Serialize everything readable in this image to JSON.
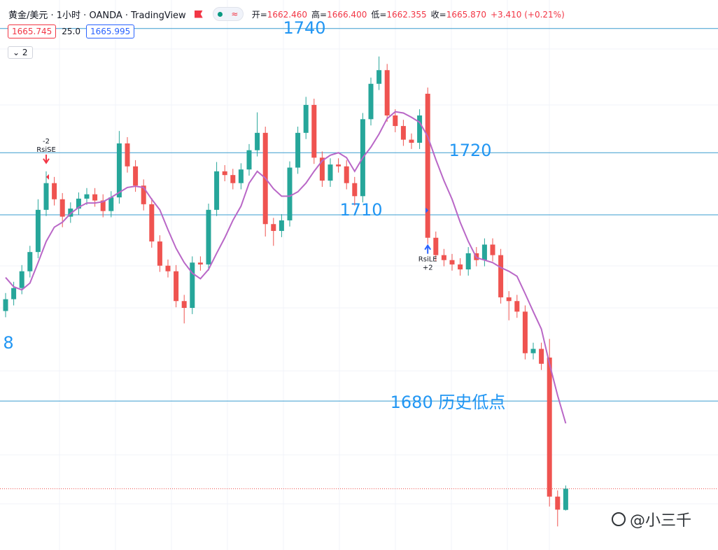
{
  "chart_data": {
    "type": "candlestick",
    "title": "黄金/美元 · 1小时 · OANDA · TradingView",
    "ohlc_header": [
      {
        "label": "开=",
        "value": "1662.460"
      },
      {
        "label": "高=",
        "value": "1666.400"
      },
      {
        "label": "低=",
        "value": "1662.355"
      },
      {
        "label": "收=",
        "value": "1665.870"
      }
    ],
    "change": "+3.410 (+0.21%)",
    "bid": "1665.745",
    "spread": "25.0",
    "ask": "1665.995",
    "indicator_count": "2",
    "watermark": "@小三千",
    "ylim": [
      1656,
      1744.6
    ],
    "up_color": "#26a69a",
    "down_color": "#ef5350",
    "open": [
      1694.5,
      1696.4,
      1698.2,
      1700.9,
      1704.0,
      1710.8,
      1715.1,
      1712.5,
      1709.7,
      1711.0,
      1712.6,
      1713.3,
      1712.3,
      1710.6,
      1712.8,
      1721.5,
      1717.8,
      1714.7,
      1711.7,
      1705.7,
      1701.8,
      1700.9,
      1696.1,
      1695.0,
      1702.3,
      1702.0,
      1710.8,
      1717.0,
      1716.4,
      1715.1,
      1717.3,
      1720.4,
      1723.2,
      1708.5,
      1707.4,
      1709.1,
      1717.6,
      1723.2,
      1727.7,
      1719.2,
      1715.5,
      1718.1,
      1717.8,
      1715.1,
      1713.0,
      1725.4,
      1731.1,
      1733.3,
      1726.0,
      1724.3,
      1722.1,
      1721.6,
      1729.5,
      1706.3,
      1703.5,
      1702.7,
      1702.0,
      1701.2,
      1703.8,
      1702.7,
      1705.2,
      1703.5,
      1696.7,
      1696.1,
      1694.4,
      1687.7,
      1688.4,
      1687.0,
      1664.6,
      1662.46
    ],
    "high": [
      1697.4,
      1699.2,
      1701.9,
      1705.0,
      1712.5,
      1717.0,
      1716.1,
      1713.5,
      1712.0,
      1713.6,
      1714.3,
      1714.3,
      1713.3,
      1713.8,
      1723.5,
      1722.5,
      1718.8,
      1715.7,
      1712.7,
      1706.7,
      1702.8,
      1701.9,
      1697.1,
      1703.3,
      1703.3,
      1711.8,
      1718.5,
      1718.0,
      1717.4,
      1718.3,
      1721.4,
      1726.5,
      1724.2,
      1709.5,
      1710.1,
      1718.6,
      1724.2,
      1729.0,
      1728.7,
      1720.2,
      1719.1,
      1719.1,
      1718.8,
      1716.1,
      1726.4,
      1732.1,
      1735.5,
      1734.3,
      1727.0,
      1725.3,
      1723.1,
      1727.0,
      1730.5,
      1707.3,
      1704.5,
      1703.7,
      1703.0,
      1704.8,
      1704.8,
      1706.2,
      1706.2,
      1704.5,
      1697.7,
      1697.1,
      1695.4,
      1689.4,
      1689.4,
      1690.0,
      1665.6,
      1666.4
    ],
    "low": [
      1693.5,
      1695.4,
      1697.2,
      1699.9,
      1703.0,
      1709.8,
      1711.5,
      1708.0,
      1708.7,
      1710.0,
      1711.6,
      1711.3,
      1709.6,
      1709.6,
      1711.8,
      1716.8,
      1713.7,
      1710.7,
      1704.7,
      1700.8,
      1699.9,
      1695.1,
      1692.5,
      1694.0,
      1701.0,
      1701.0,
      1709.8,
      1715.4,
      1714.1,
      1714.1,
      1716.3,
      1719.4,
      1706.5,
      1705.0,
      1706.4,
      1708.1,
      1716.6,
      1722.2,
      1718.2,
      1714.5,
      1714.5,
      1716.8,
      1714.1,
      1711.5,
      1712.0,
      1724.4,
      1730.1,
      1725.0,
      1723.3,
      1721.1,
      1720.6,
      1720.6,
      1705.3,
      1702.5,
      1701.7,
      1701.0,
      1700.2,
      1700.2,
      1701.7,
      1701.7,
      1702.5,
      1695.7,
      1693.0,
      1693.4,
      1686.7,
      1686.7,
      1685.0,
      1663.0,
      1659.8,
      1662.355
    ],
    "close": [
      1696.4,
      1698.2,
      1700.9,
      1704.0,
      1710.8,
      1715.1,
      1712.5,
      1709.7,
      1711.0,
      1712.6,
      1713.3,
      1712.3,
      1710.6,
      1712.8,
      1721.5,
      1717.8,
      1714.7,
      1711.7,
      1705.7,
      1701.8,
      1700.9,
      1696.1,
      1695.0,
      1702.3,
      1702.0,
      1710.8,
      1717.0,
      1716.4,
      1715.1,
      1717.3,
      1720.4,
      1723.2,
      1708.5,
      1707.4,
      1709.1,
      1717.6,
      1723.2,
      1727.7,
      1719.2,
      1715.5,
      1718.1,
      1717.8,
      1715.1,
      1713.0,
      1725.4,
      1731.1,
      1733.3,
      1726.0,
      1724.3,
      1722.1,
      1721.6,
      1726.0,
      1706.3,
      1703.5,
      1702.7,
      1702.0,
      1701.2,
      1703.8,
      1702.7,
      1705.2,
      1703.5,
      1696.7,
      1696.1,
      1694.4,
      1687.7,
      1688.4,
      1686.0,
      1664.6,
      1662.5,
      1665.87
    ],
    "ma": {
      "color": "#b967c7",
      "values": [
        1699.9,
        1698.4,
        1697.9,
        1699.0,
        1702.3,
        1705.7,
        1708.0,
        1708.8,
        1710.2,
        1711.2,
        1711.9,
        1711.9,
        1712.1,
        1712.8,
        1713.6,
        1714.4,
        1714.6,
        1714.4,
        1712.5,
        1710.8,
        1707.6,
        1704.6,
        1702.3,
        1700.6,
        1699.7,
        1701.2,
        1703.8,
        1706.3,
        1709.1,
        1711.4,
        1715.1,
        1717.0,
        1715.9,
        1714.2,
        1713.0,
        1713.0,
        1713.7,
        1715.1,
        1717.0,
        1718.7,
        1719.6,
        1720.0,
        1719.2,
        1717.0,
        1719.2,
        1720.9,
        1723.0,
        1725.5,
        1726.6,
        1726.4,
        1725.7,
        1724.9,
        1722.6,
        1718.9,
        1715.5,
        1712.5,
        1708.8,
        1705.7,
        1703.1,
        1702.7,
        1702.3,
        1701.5,
        1700.9,
        1700.1,
        1697.3,
        1694.4,
        1691.6,
        1686.0,
        1680.9,
        1676.4
      ]
    },
    "level_color": "#2196f3",
    "levels": [
      1740,
      1720,
      1710,
      {
        "value": 1680,
        "label": "1680 历史低点"
      }
    ],
    "clipped_label": "8",
    "signals": [
      {
        "index": 5,
        "label": "RsiSE",
        "qty": "-2",
        "side": "sell"
      },
      {
        "index": 52,
        "label": "RsiLE",
        "qty": "+2",
        "side": "buy"
      }
    ]
  }
}
